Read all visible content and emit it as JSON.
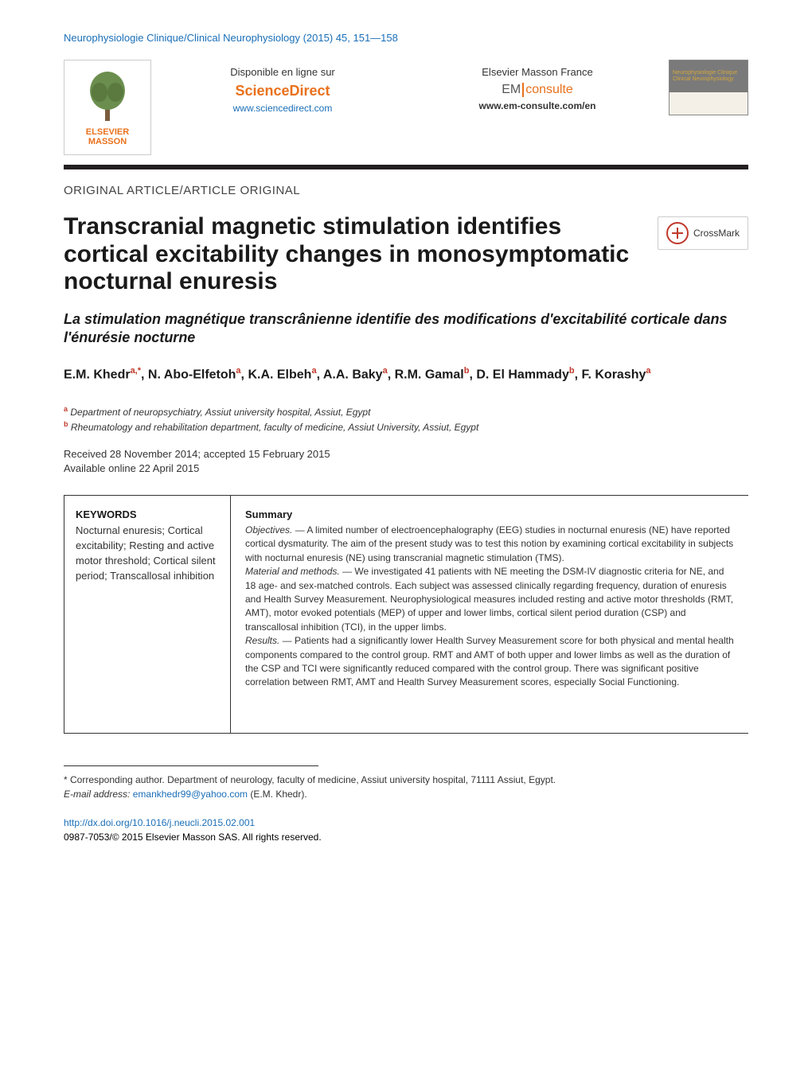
{
  "journal_header": "Neurophysiologie Clinique/Clinical Neurophysiology (2015) 45, 151—158",
  "banner": {
    "left_logo_text": "ELSEVIER MASSON",
    "col1_label": "Disponible en ligne sur",
    "col1_brand": "ScienceDirect",
    "col1_url": "www.sciencedirect.com",
    "col2_label": "Elsevier Masson France",
    "col2_em_prefix": "EM",
    "col2_em_suffix": "consulte",
    "col2_url": "www.em-consulte.com/en",
    "cover_text": "Neurophysiologie Clinique Clinical Neurophysiology"
  },
  "article_type": "ORIGINAL ARTICLE/ARTICLE ORIGINAL",
  "title_main": "Transcranial magnetic stimulation identifies cortical excitability changes in monosymptomatic nocturnal enuresis",
  "crossmark_label": "CrossMark",
  "title_sub": "La stimulation magnétique transcrânienne identifie des modifications d'excitabilité corticale dans l'énurésie nocturne",
  "authors_html": "E.M. Khedr<sup>a,*</sup>, N. Abo-Elfetoh<sup>a</sup>, K.A. Elbeh<sup>a</sup>, A.A. Baky<sup>a</sup>, R.M. Gamal<sup>b</sup>, D. El Hammady<sup>b</sup>, F. Korashy<sup>a</sup>",
  "affiliations": {
    "a": "Department of neuropsychiatry, Assiut university hospital, Assiut, Egypt",
    "b": "Rheumatology and rehabilitation department, faculty of medicine, Assiut University, Assiut, Egypt"
  },
  "dates": {
    "received_accepted": "Received 28 November 2014; accepted 15 February 2015",
    "online": "Available online 22 April 2015"
  },
  "keywords": {
    "heading": "KEYWORDS",
    "list": "Nocturnal enuresis; Cortical excitability; Resting and active motor threshold; Cortical silent period; Transcallosal inhibition"
  },
  "summary": {
    "heading": "Summary",
    "objectives_label": "Objectives. —",
    "objectives": "A limited number of electroencephalography (EEG) studies in nocturnal enuresis (NE) have reported cortical dysmaturity. The aim of the present study was to test this notion by examining cortical excitability in subjects with nocturnal enuresis (NE) using transcranial magnetic stimulation (TMS).",
    "methods_label": "Material and methods. —",
    "methods": "We investigated 41 patients with NE meeting the DSM-IV diagnostic criteria for NE, and 18 age- and sex-matched controls. Each subject was assessed clinically regarding frequency, duration of enuresis and Health Survey Measurement. Neurophysiological measures included resting and active motor thresholds (RMT, AMT), motor evoked potentials (MEP) of upper and lower limbs, cortical silent period duration (CSP) and transcallosal inhibition (TCI), in the upper limbs.",
    "results_label": "Results. —",
    "results": "Patients had a significantly lower Health Survey Measurement score for both physical and mental health components compared to the control group. RMT and AMT of both upper and lower limbs as well as the duration of the CSP and TCI were significantly reduced compared with the control group. There was significant positive correlation between RMT, AMT and Health Survey Measurement scores, especially Social Functioning."
  },
  "footnote": {
    "corresponding": "* Corresponding author. Department of neurology, faculty of medicine, Assiut university hospital, 71111 Assiut, Egypt.",
    "email_label": "E-mail address:",
    "email": "emankhedr99@yahoo.com",
    "email_suffix": "(E.M. Khedr)."
  },
  "footer": {
    "doi": "http://dx.doi.org/10.1016/j.neucli.2015.02.001",
    "copyright": "0987-7053/© 2015 Elsevier Masson SAS. All rights reserved."
  },
  "colors": {
    "link": "#1a6fb8",
    "accent_orange": "#e9711c",
    "sup_red": "#c0392b",
    "rule_dark": "#231f20",
    "text": "#333333"
  }
}
